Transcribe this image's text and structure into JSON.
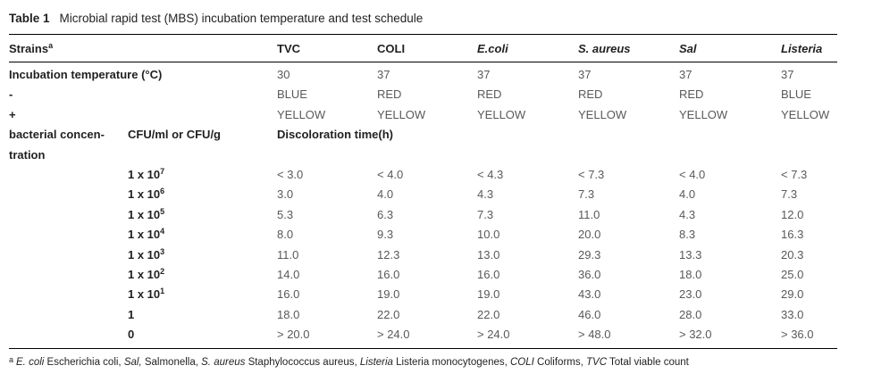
{
  "title": {
    "number": "Table 1",
    "text": "Microbial rapid test (MBS) incubation temperature and test schedule"
  },
  "table": {
    "header": {
      "strains": "Strains",
      "strains_sup": "a",
      "columns": [
        {
          "label": "TVC",
          "italic": false
        },
        {
          "label": "COLI",
          "italic": false
        },
        {
          "label": "E.coli",
          "italic": true
        },
        {
          "label": "S. aureus",
          "italic": true
        },
        {
          "label": "Sal",
          "italic": true
        },
        {
          "label": "Listeria",
          "italic": true
        }
      ]
    },
    "rows_simple": [
      {
        "label": "Incubation temperature (°C)",
        "values": [
          "30",
          "37",
          "37",
          "37",
          "37",
          "37"
        ]
      },
      {
        "label": "-",
        "values": [
          "BLUE",
          "RED",
          "RED",
          "RED",
          "RED",
          "BLUE"
        ]
      },
      {
        "label": "+",
        "values": [
          "YELLOW",
          "YELLOW",
          "YELLOW",
          "YELLOW",
          "YELLOW",
          "YELLOW"
        ]
      }
    ],
    "concentration": {
      "label_line1": "bacterial concen-",
      "label_line2": "tration",
      "cfu_header": "CFU/ml or CFU/g",
      "span_header": "Discoloration time(h)",
      "rows": [
        {
          "base": "1 x 10",
          "exp": "7",
          "values": [
            "< 3.0",
            "< 4.0",
            "< 4.3",
            "< 7.3",
            "< 4.0",
            "< 7.3"
          ]
        },
        {
          "base": "1 x 10",
          "exp": "6",
          "values": [
            "3.0",
            "4.0",
            "4.3",
            "7.3",
            "4.0",
            "7.3"
          ]
        },
        {
          "base": "1 x 10",
          "exp": "5",
          "values": [
            "5.3",
            "6.3",
            "7.3",
            "11.0",
            "4.3",
            "12.0"
          ]
        },
        {
          "base": "1 x 10",
          "exp": "4",
          "values": [
            "8.0",
            "9.3",
            "10.0",
            "20.0",
            "8.3",
            "16.3"
          ]
        },
        {
          "base": "1 x 10",
          "exp": "3",
          "values": [
            "11.0",
            "12.3",
            "13.0",
            "29.3",
            "13.3",
            "20.3"
          ]
        },
        {
          "base": "1 x 10",
          "exp": "2",
          "values": [
            "14.0",
            "16.0",
            "16.0",
            "36.0",
            "18.0",
            "25.0"
          ]
        },
        {
          "base": "1 x 10",
          "exp": "1",
          "values": [
            "16.0",
            "19.0",
            "19.0",
            "43.0",
            "23.0",
            "29.0"
          ]
        },
        {
          "base": "1",
          "exp": "",
          "values": [
            "18.0",
            "22.0",
            "22.0",
            "46.0",
            "28.0",
            "33.0"
          ]
        },
        {
          "base": "0",
          "exp": "",
          "values": [
            "> 20.0",
            "> 24.0",
            "> 24.0",
            "> 48.0",
            "> 32.0",
            "> 36.0"
          ]
        }
      ]
    }
  },
  "footnote": {
    "sup": "a",
    "parts": [
      {
        "text": "E. coli",
        "italic": true
      },
      {
        "text": " Escherichia coli, ",
        "italic": false
      },
      {
        "text": "Sal,",
        "italic": true
      },
      {
        "text": " Salmonella, ",
        "italic": false
      },
      {
        "text": "S. aureus",
        "italic": true
      },
      {
        "text": " Staphylococcus aureus, ",
        "italic": false
      },
      {
        "text": "Listeria",
        "italic": true
      },
      {
        "text": " Listeria monocytogenes, ",
        "italic": false
      },
      {
        "text": "COLI",
        "italic": true
      },
      {
        "text": " Coliforms, ",
        "italic": false
      },
      {
        "text": "TVC",
        "italic": true
      },
      {
        "text": " Total viable count",
        "italic": false
      }
    ]
  }
}
